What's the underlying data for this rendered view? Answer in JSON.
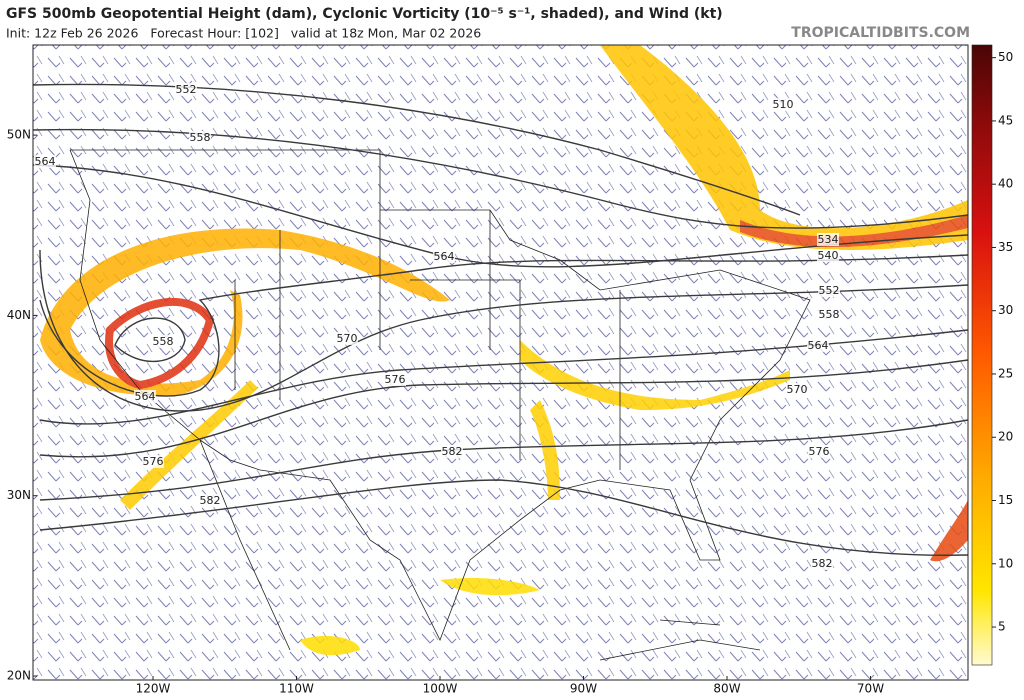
{
  "map": {
    "title": "GFS 500mb Geopotential Height (dam), Cyclonic Vorticity (10⁻⁵ s⁻¹, shaded), and Wind (kt)",
    "subtitle": "Init: 12z Feb 26 2026   Forecast Hour: [102]   valid at 18z Mon, Mar 02 2026",
    "site": "TROPICALTIDBITS.COM",
    "lat_ticks": [
      {
        "value": 50,
        "label": "50N"
      },
      {
        "value": 40,
        "label": "40N"
      },
      {
        "value": 30,
        "label": "30N"
      },
      {
        "value": 20,
        "label": "20N"
      }
    ],
    "lon_ticks": [
      {
        "value": -120,
        "label": "120W"
      },
      {
        "value": -110,
        "label": "110W"
      },
      {
        "value": -100,
        "label": "100W"
      },
      {
        "value": -90,
        "label": "90W"
      },
      {
        "value": -80,
        "label": "80W"
      },
      {
        "value": -70,
        "label": "70W"
      }
    ],
    "contour_labels": [
      552,
      558,
      564,
      564,
      570,
      576,
      582,
      582,
      576,
      564,
      558,
      510,
      534,
      540,
      552,
      558,
      564,
      570,
      576,
      582
    ],
    "colorbar": {
      "clim": [
        2,
        51
      ],
      "ticks": [
        5,
        10,
        15,
        20,
        25,
        30,
        35,
        40,
        45,
        50
      ]
    }
  }
}
